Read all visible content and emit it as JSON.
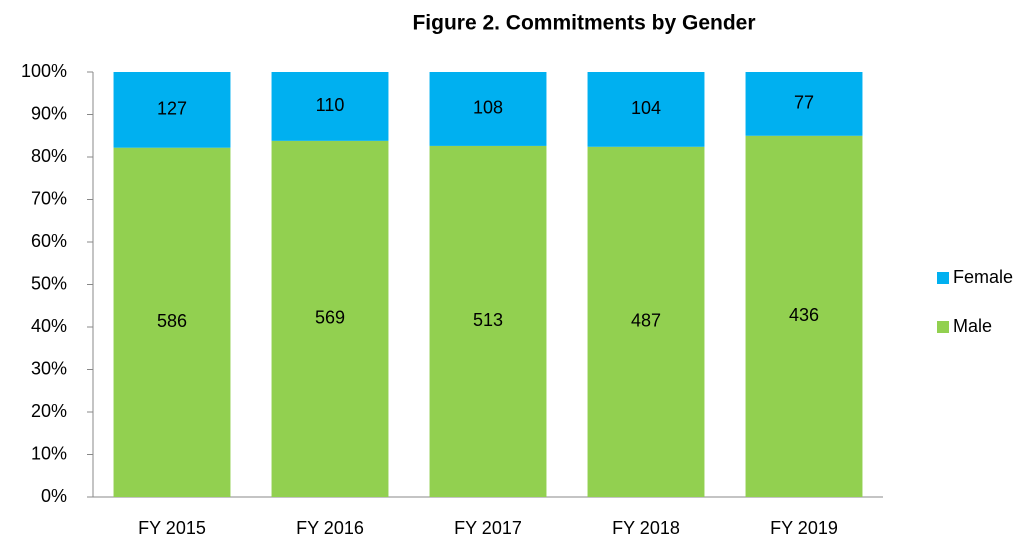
{
  "chart_data": {
    "type": "bar",
    "stacking": "percent",
    "title": "Figure 2. Commitments by Gender",
    "categories": [
      "FY 2015",
      "FY 2016",
      "FY 2017",
      "FY 2018",
      "FY 2019"
    ],
    "series": [
      {
        "name": "Male",
        "color": "#92d050",
        "values": [
          586,
          569,
          513,
          487,
          436
        ]
      },
      {
        "name": "Female",
        "color": "#00b0f0",
        "values": [
          127,
          110,
          108,
          104,
          77
        ]
      }
    ],
    "ylim": [
      0,
      100
    ],
    "yticks": [
      {
        "value": 0,
        "label": "0%"
      },
      {
        "value": 10,
        "label": "10%"
      },
      {
        "value": 20,
        "label": "20%"
      },
      {
        "value": 30,
        "label": "30%"
      },
      {
        "value": 40,
        "label": "40%"
      },
      {
        "value": 50,
        "label": "50%"
      },
      {
        "value": 60,
        "label": "60%"
      },
      {
        "value": 70,
        "label": "70%"
      },
      {
        "value": 80,
        "label": "80%"
      },
      {
        "value": 90,
        "label": "90%"
      },
      {
        "value": 100,
        "label": "100%"
      }
    ],
    "legend": "right"
  }
}
